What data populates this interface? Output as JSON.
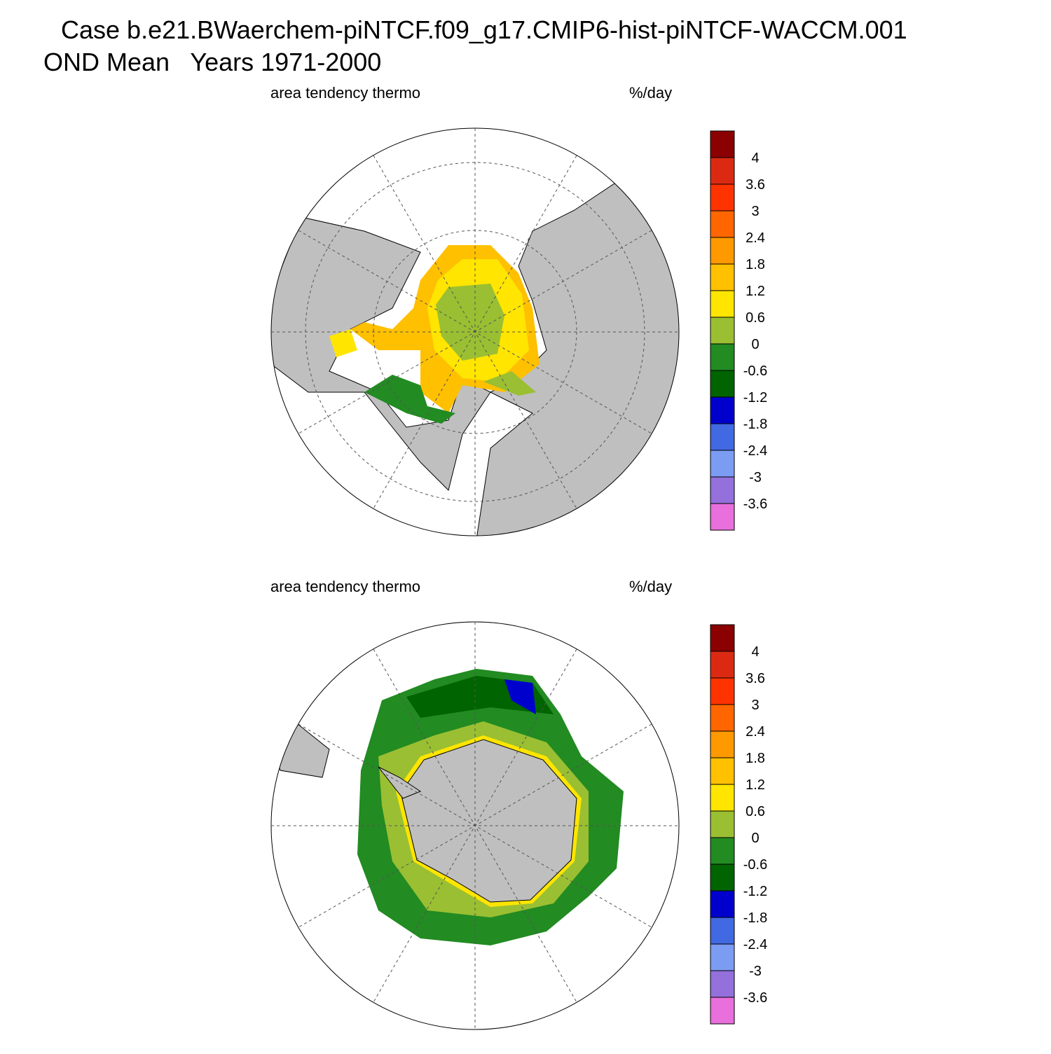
{
  "header": {
    "title_line1": "Case b.e21.BWaerchem-piNTCF.f09_g17.CMIP6-hist-piNTCF-WACCM.001",
    "title_line2": "OND Mean   Years 1971-2000"
  },
  "panels": [
    {
      "left_label": "area tendency thermo",
      "right_label": "%/day",
      "colorbar": {
        "levels": [
          4,
          3.6,
          3,
          2.4,
          1.8,
          1.2,
          0.6,
          0,
          -0.6,
          -1.2,
          -1.8,
          -2.4,
          -3,
          -3.6
        ],
        "colors": [
          "#8b0000",
          "#dc2a12",
          "#ff3300",
          "#ff6600",
          "#ff9900",
          "#ffc000",
          "#ffe500",
          "#9abf32",
          "#228b22",
          "#006400",
          "#0000cd",
          "#4169e1",
          "#7b9cf2",
          "#9370db",
          "#e86fdc"
        ]
      }
    },
    {
      "left_label": "area tendency thermo",
      "right_label": "%/day",
      "colorbar": {
        "levels": [
          4,
          3.6,
          3,
          2.4,
          1.8,
          1.2,
          0.6,
          0,
          -0.6,
          -1.2,
          -1.8,
          -2.4,
          -3,
          -3.6
        ],
        "colors": [
          "#8b0000",
          "#dc2a12",
          "#ff3300",
          "#ff6600",
          "#ff9900",
          "#ffc000",
          "#ffe500",
          "#9abf32",
          "#228b22",
          "#006400",
          "#0000cd",
          "#4169e1",
          "#7b9cf2",
          "#9370db",
          "#e86fdc"
        ]
      }
    }
  ]
}
